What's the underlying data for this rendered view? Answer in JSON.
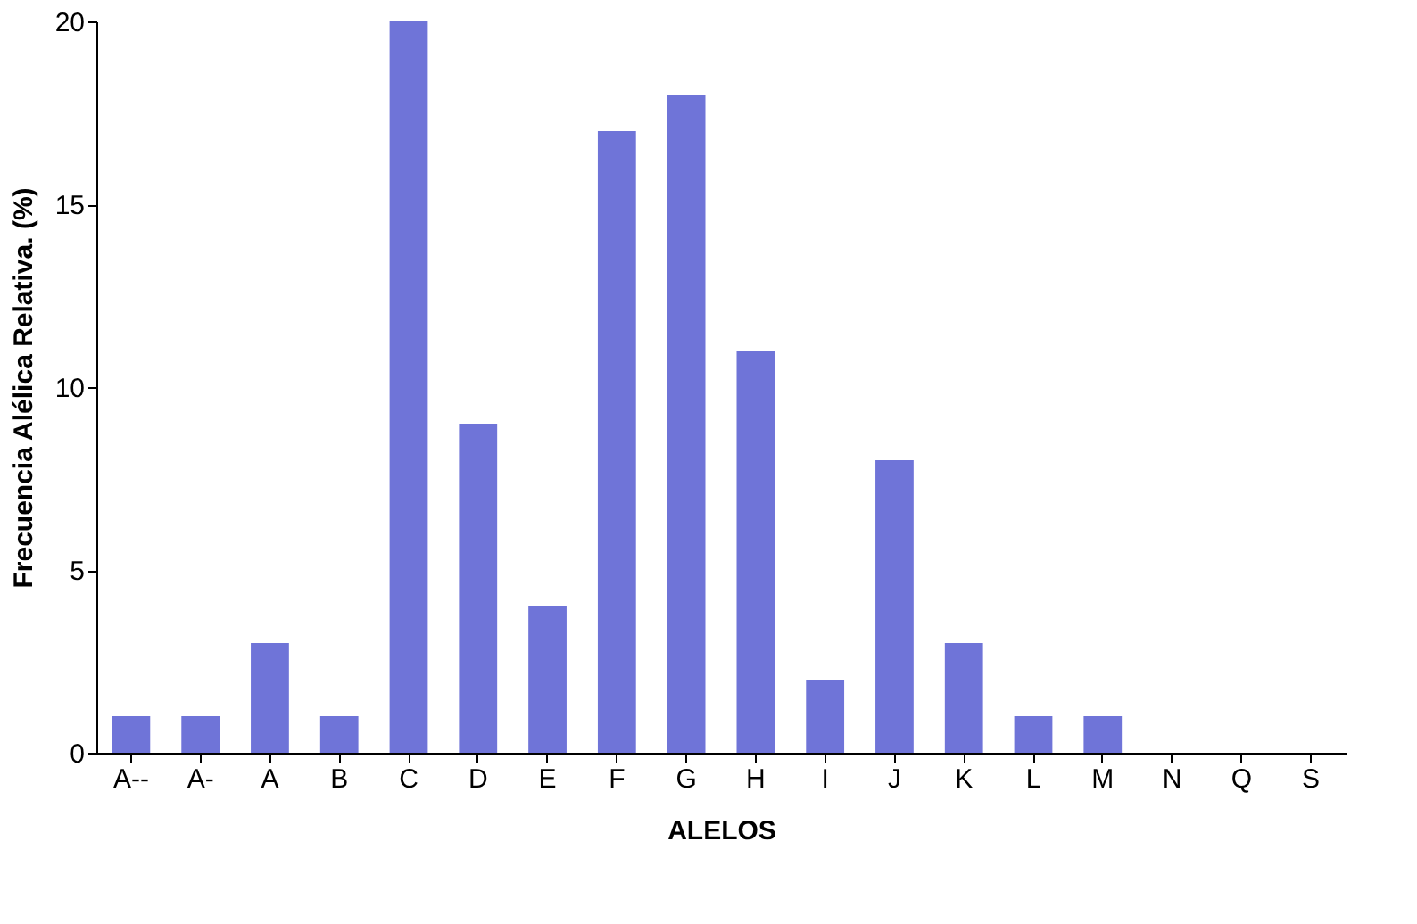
{
  "chart_data": {
    "type": "bar",
    "xlabel": "ALELOS",
    "ylabel": "Frecuencia Alélica Relativa. (%)",
    "categories": [
      "A--",
      "A-",
      "A",
      "B",
      "C",
      "D",
      "E",
      "F",
      "G",
      "H",
      "I",
      "J",
      "K",
      "L",
      "M",
      "N",
      "Q",
      "S"
    ],
    "values": [
      1,
      1,
      3,
      1,
      20,
      9,
      4,
      17,
      18,
      11,
      2,
      8,
      3,
      1,
      1,
      0,
      0,
      0
    ],
    "color": "#6f74d8",
    "ylim": [
      0,
      20
    ],
    "yticks": [
      0,
      5,
      10,
      15,
      20
    ],
    "grid": false
  }
}
